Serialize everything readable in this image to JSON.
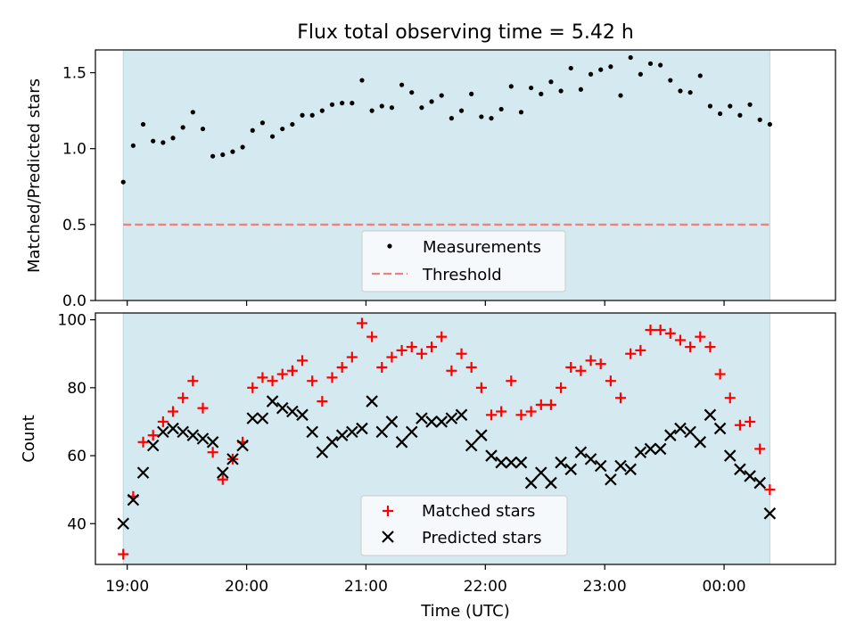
{
  "chart_data": [
    {
      "type": "scatter",
      "title": "Flux total observing time = 5.42 h",
      "xlabel": "",
      "ylabel": "Matched/Predicted stars",
      "xlim": [
        "18:44",
        "00:56"
      ],
      "ylim": [
        0,
        1.65
      ],
      "yticks": [
        "0.0",
        "0.5",
        "1.0",
        "1.5"
      ],
      "xticks": [
        "19:00",
        "20:00",
        "21:00",
        "22:00",
        "23:00",
        "00:00"
      ],
      "observing_span": [
        "18:58",
        "00:23"
      ],
      "threshold": 0.5,
      "legend": {
        "position": "lower center",
        "entries": [
          "Measurements",
          "Threshold"
        ]
      },
      "colors": {
        "measurements": "#000000",
        "threshold": "#f08080",
        "span": "#d4eaf0"
      },
      "series": [
        {
          "name": "Measurements",
          "x": [
            "18:58",
            "19:03",
            "19:08",
            "19:13",
            "19:18",
            "19:23",
            "19:28",
            "19:33",
            "19:38",
            "19:43",
            "19:48",
            "19:53",
            "19:58",
            "20:03",
            "20:08",
            "20:13",
            "20:18",
            "20:23",
            "20:28",
            "20:33",
            "20:38",
            "20:43",
            "20:48",
            "20:53",
            "20:58",
            "21:03",
            "21:08",
            "21:13",
            "21:18",
            "21:23",
            "21:28",
            "21:33",
            "21:38",
            "21:43",
            "21:48",
            "21:53",
            "21:58",
            "22:03",
            "22:08",
            "22:13",
            "22:18",
            "22:23",
            "22:28",
            "22:33",
            "22:38",
            "22:43",
            "22:48",
            "22:53",
            "22:58",
            "23:03",
            "23:08",
            "23:13",
            "23:18",
            "23:23",
            "23:28",
            "23:33",
            "23:38",
            "23:43",
            "23:48",
            "23:53",
            "23:58",
            "00:03",
            "00:08",
            "00:13",
            "00:18",
            "00:23"
          ],
          "y": [
            0.78,
            1.02,
            1.16,
            1.05,
            1.04,
            1.07,
            1.14,
            1.24,
            1.13,
            0.95,
            0.96,
            0.98,
            1.01,
            1.12,
            1.17,
            1.08,
            1.13,
            1.16,
            1.22,
            1.22,
            1.25,
            1.29,
            1.3,
            1.3,
            1.45,
            1.25,
            1.28,
            1.27,
            1.42,
            1.37,
            1.27,
            1.31,
            1.35,
            1.2,
            1.25,
            1.36,
            1.21,
            1.2,
            1.26,
            1.41,
            1.24,
            1.4,
            1.36,
            1.44,
            1.38,
            1.53,
            1.39,
            1.49,
            1.52,
            1.54,
            1.35,
            1.6,
            1.49,
            1.56,
            1.55,
            1.45,
            1.38,
            1.37,
            1.48,
            1.28,
            1.23,
            1.28,
            1.22,
            1.29,
            1.19,
            1.16
          ]
        }
      ]
    },
    {
      "type": "scatter",
      "title": "",
      "xlabel": "Time (UTC)",
      "ylabel": "Count",
      "xlim": [
        "18:44",
        "00:56"
      ],
      "ylim": [
        28,
        102
      ],
      "yticks": [
        "40",
        "60",
        "80",
        "100"
      ],
      "xticks": [
        "19:00",
        "20:00",
        "21:00",
        "22:00",
        "23:00",
        "00:00"
      ],
      "legend": {
        "position": "lower center",
        "entries": [
          "Matched stars",
          "Predicted stars"
        ]
      },
      "colors": {
        "matched": "#ff0000",
        "predicted": "#000000",
        "span": "#d4eaf0"
      },
      "x": [
        "18:58",
        "19:03",
        "19:08",
        "19:13",
        "19:18",
        "19:23",
        "19:28",
        "19:33",
        "19:38",
        "19:43",
        "19:48",
        "19:53",
        "19:58",
        "20:03",
        "20:08",
        "20:13",
        "20:18",
        "20:23",
        "20:28",
        "20:33",
        "20:38",
        "20:43",
        "20:48",
        "20:53",
        "20:58",
        "21:03",
        "21:08",
        "21:13",
        "21:18",
        "21:23",
        "21:28",
        "21:33",
        "21:38",
        "21:43",
        "21:48",
        "21:53",
        "21:58",
        "22:03",
        "22:08",
        "22:13",
        "22:18",
        "22:23",
        "22:28",
        "22:33",
        "22:38",
        "22:43",
        "22:48",
        "22:53",
        "22:58",
        "23:03",
        "23:08",
        "23:13",
        "23:18",
        "23:23",
        "23:28",
        "23:33",
        "23:38",
        "23:43",
        "23:48",
        "23:53",
        "23:58",
        "00:03",
        "00:08",
        "00:13",
        "00:18",
        "00:23"
      ],
      "series": [
        {
          "name": "Matched stars",
          "values": [
            31,
            48,
            64,
            66,
            70,
            73,
            77,
            82,
            74,
            61,
            53,
            59,
            64,
            80,
            83,
            82,
            84,
            85,
            88,
            82,
            76,
            83,
            86,
            89,
            99,
            95,
            86,
            89,
            91,
            92,
            90,
            92,
            95,
            85,
            90,
            86,
            80,
            72,
            73,
            82,
            72,
            73,
            75,
            75,
            80,
            86,
            85,
            88,
            87,
            82,
            77,
            90,
            91,
            97,
            97,
            96,
            94,
            92,
            95,
            92,
            84,
            77,
            69,
            70,
            62,
            50
          ]
        },
        {
          "name": "Predicted stars",
          "values": [
            40,
            47,
            55,
            63,
            67,
            68,
            67,
            66,
            65,
            64,
            55,
            59,
            63,
            71,
            71,
            76,
            74,
            73,
            72,
            67,
            61,
            64,
            66,
            67,
            68,
            76,
            67,
            70,
            64,
            67,
            71,
            70,
            70,
            71,
            72,
            63,
            66,
            60,
            58,
            58,
            58,
            52,
            55,
            52,
            58,
            56,
            61,
            59,
            57,
            53,
            57,
            56,
            61,
            62,
            62,
            66,
            68,
            67,
            64,
            72,
            68,
            60,
            56,
            54,
            52,
            43
          ]
        }
      ]
    }
  ]
}
